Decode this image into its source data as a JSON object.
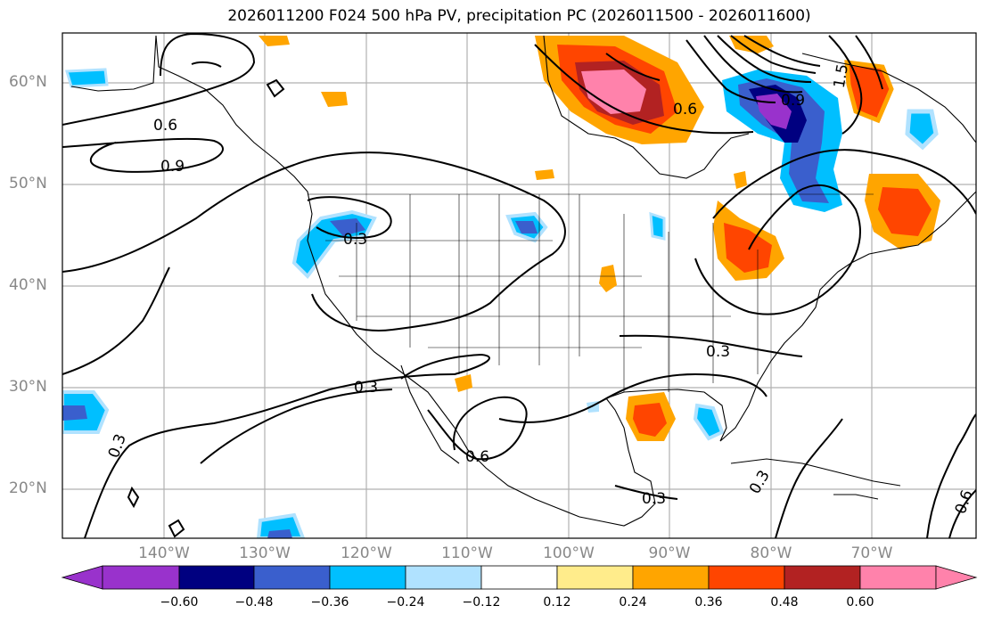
{
  "title": "2026011200 F024 500 hPa PV, precipitation PC (2026011500 - 2026011600)",
  "axes": {
    "lat_labels": [
      "60°N",
      "50°N",
      "40°N",
      "30°N",
      "20°N"
    ],
    "lon_labels": [
      "140°W",
      "130°W",
      "120°W",
      "110°W",
      "100°W",
      "90°W",
      "80°W",
      "70°W"
    ]
  },
  "colorbar": {
    "ticks": [
      "−0.60",
      "−0.48",
      "−0.36",
      "−0.24",
      "−0.12",
      "0.12",
      "0.24",
      "0.36",
      "0.48",
      "0.60"
    ],
    "colors": [
      "#9932cc",
      "#000080",
      "#3a5fcd",
      "#00bfff",
      "#b0e2ff",
      "#ffffff",
      "#ffec8b",
      "#ffa500",
      "#ff4500",
      "#b22222",
      "#ff82ab"
    ]
  },
  "contour_labels": [
    "0.6",
    "0.9",
    "0.3",
    "0.3",
    "0.3",
    "0.6",
    "0.3",
    "0.3",
    "0.9",
    "1.5",
    "0.6",
    "0.3",
    "0.6"
  ]
}
